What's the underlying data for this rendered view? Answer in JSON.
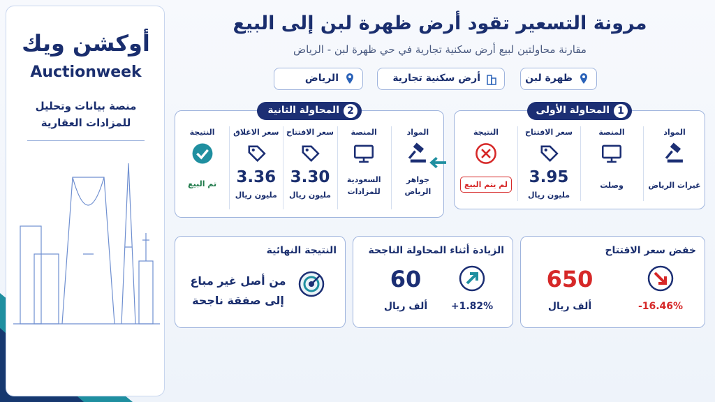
{
  "sidebar": {
    "logo_ar": "أوكشن ويك",
    "logo_en": "Auctionweek",
    "tagline": [
      "منصة بيانات وتحليل",
      "للمزادات العقارية"
    ]
  },
  "header": {
    "title": "مرونة التسعير تقود أرض ظهرة لبن إلى البيع",
    "subtitle": "مقارنة محاولتين لبيع أرض سكنية تجارية في حي ظهرة لبن - الرياض",
    "tags": [
      "ظهرة لبن",
      "أرض سكنية تجارية",
      "الرياض"
    ]
  },
  "attempts": [
    {
      "number": "1",
      "title": "المحاولة الأولى",
      "columns": [
        {
          "label": "المواد",
          "value": "غيرات الرياض"
        },
        {
          "label": "المنصة",
          "value": "وصلت"
        },
        {
          "label": "سعر الافتتاح",
          "value": "3.95",
          "unit": "مليون ريال"
        },
        {
          "label": "النتيجة",
          "value": "لم يتم البيع"
        }
      ]
    },
    {
      "number": "2",
      "title": "المحاولة الثانية",
      "columns": [
        {
          "label": "المواد",
          "value": "جواهر الرياض"
        },
        {
          "label": "المنصة",
          "value": "السعودية للمزادات"
        },
        {
          "label": "سعر الافتتاح",
          "value": "3.30",
          "unit": "مليون ريال"
        },
        {
          "label": "سعر الاغلاق",
          "value": "3.36",
          "unit": "مليون ريال"
        },
        {
          "label": "النتيجة",
          "value": "تم البيع"
        }
      ]
    }
  ],
  "summary": [
    {
      "title": "خفض سعر الافتتاح",
      "value": "650",
      "unit": "ألف ريال",
      "change": "-16.46%"
    },
    {
      "title": "الزيادة أثناء المحاولة الناجحة",
      "value": "60",
      "unit": "ألف ريال",
      "change": "+1.82%"
    },
    {
      "title": "النتيجة النهائية",
      "lines": [
        "من أصل غير مباع",
        "إلى صفقة ناجحة"
      ]
    }
  ]
}
